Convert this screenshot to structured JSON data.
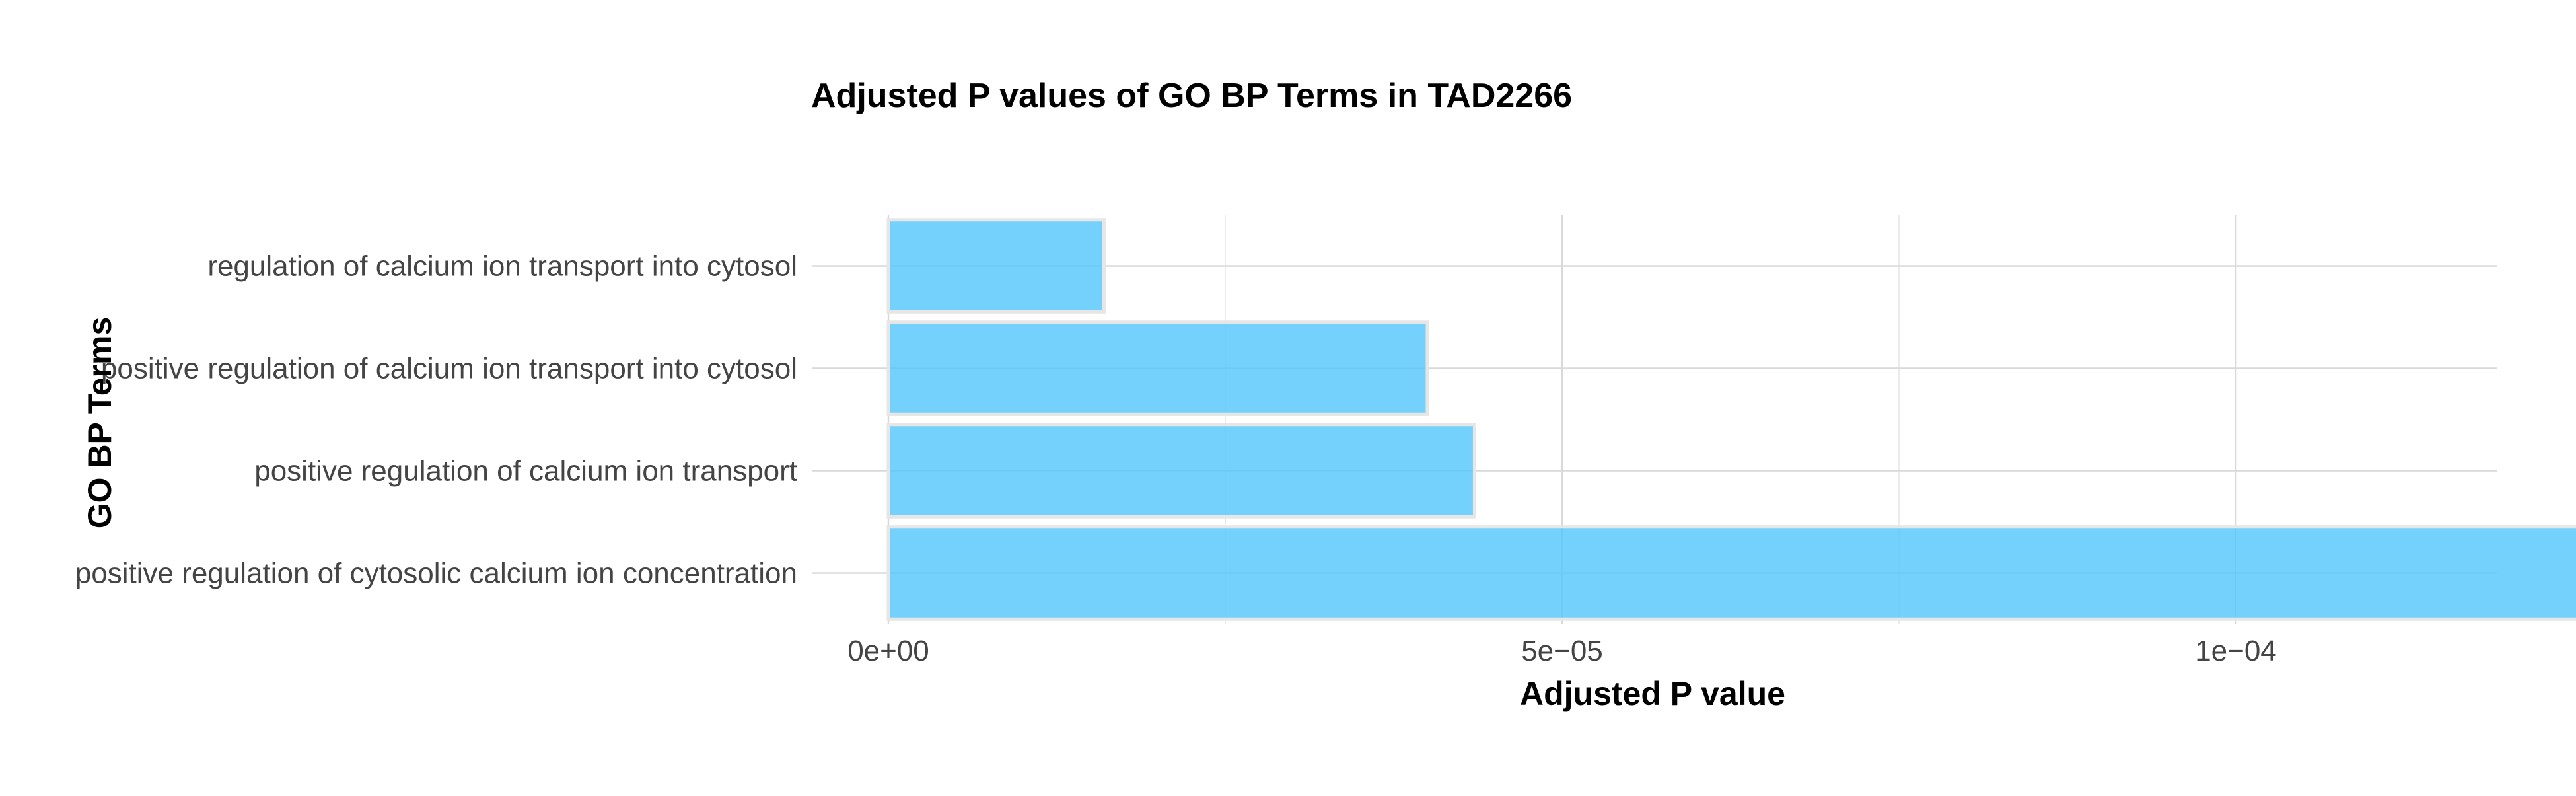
{
  "chart_data": {
    "type": "bar",
    "orientation": "horizontal",
    "title": "Adjusted P values of GO BP Terms in TAD2266",
    "xlabel": "Adjusted P value",
    "ylabel": "GO BP Terms",
    "categories": [
      "regulation of calcium ion transport into cytosol",
      "positive regulation of calcium ion transport into cytosol",
      "positive regulation of calcium ion transport",
      "positive regulation of cytosolic calcium ion concentration"
    ],
    "values": [
      1.6e-05,
      4e-05,
      4.35e-05,
      0.0001375
    ],
    "xlim": [
      0,
      0.0001445
    ],
    "x_ticks": [
      0,
      5e-05,
      0.0001
    ],
    "x_tick_labels": [
      "0e+00",
      "5e−05",
      "1e−04"
    ],
    "bar_color": "#56c7fb",
    "grid": true,
    "legend": "none"
  }
}
